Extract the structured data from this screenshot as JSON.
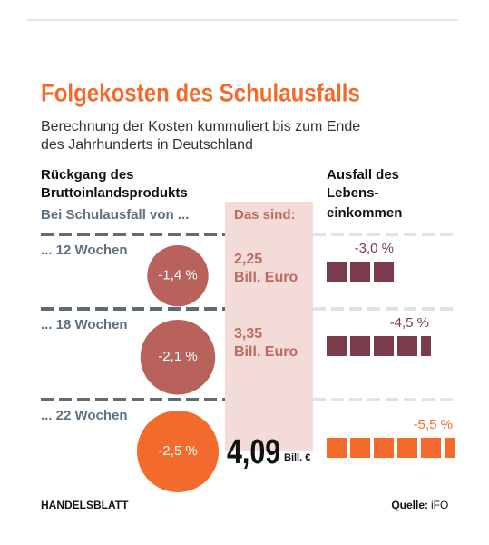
{
  "chart_data": {
    "type": "infographic",
    "title": "Folgekosten des Schulausfalls",
    "subtitle": [
      "Berechnung der Kosten kummuliert bis zum Ende",
      "des Jahrhunderts in Deutschland"
    ],
    "left_header": [
      "Rückgang des",
      "Bruttoinlandsprodukts"
    ],
    "left_subheader": "Bei Schulausfall von ...",
    "middle_header": "Das sind:",
    "right_header": [
      "Ausfall des",
      "Lebens-",
      "einkommen"
    ],
    "categories": [
      "... 12 Wochen",
      "... 18 Wochen",
      "... 22 Wochen"
    ],
    "gdp": {
      "values": [
        -1.4,
        -2.1,
        -2.5
      ],
      "value_labels": [
        "-1,4 %",
        "-2,1 %",
        "-2,5 %"
      ],
      "colors": [
        "#b9625c",
        "#b9625c",
        "#f26b2c"
      ]
    },
    "cost": {
      "values": [
        2.25,
        3.35,
        4.09
      ],
      "value_labels": [
        "2,25",
        "3,35",
        "4,09"
      ],
      "units": [
        "Bill. Euro",
        "Bill. Euro",
        "Bill. €"
      ]
    },
    "income": {
      "values": [
        -3.0,
        -4.5,
        -5.5
      ],
      "value_labels": [
        "-3,0 %",
        "-4,5 %",
        "-5,5 %"
      ],
      "colors": [
        "#7a3b4b",
        "#7a3b4b",
        "#f26b2c"
      ]
    },
    "footer": {
      "brand": "HANDELSBLATT",
      "source_label": "Quelle:",
      "source": "iFO"
    }
  }
}
